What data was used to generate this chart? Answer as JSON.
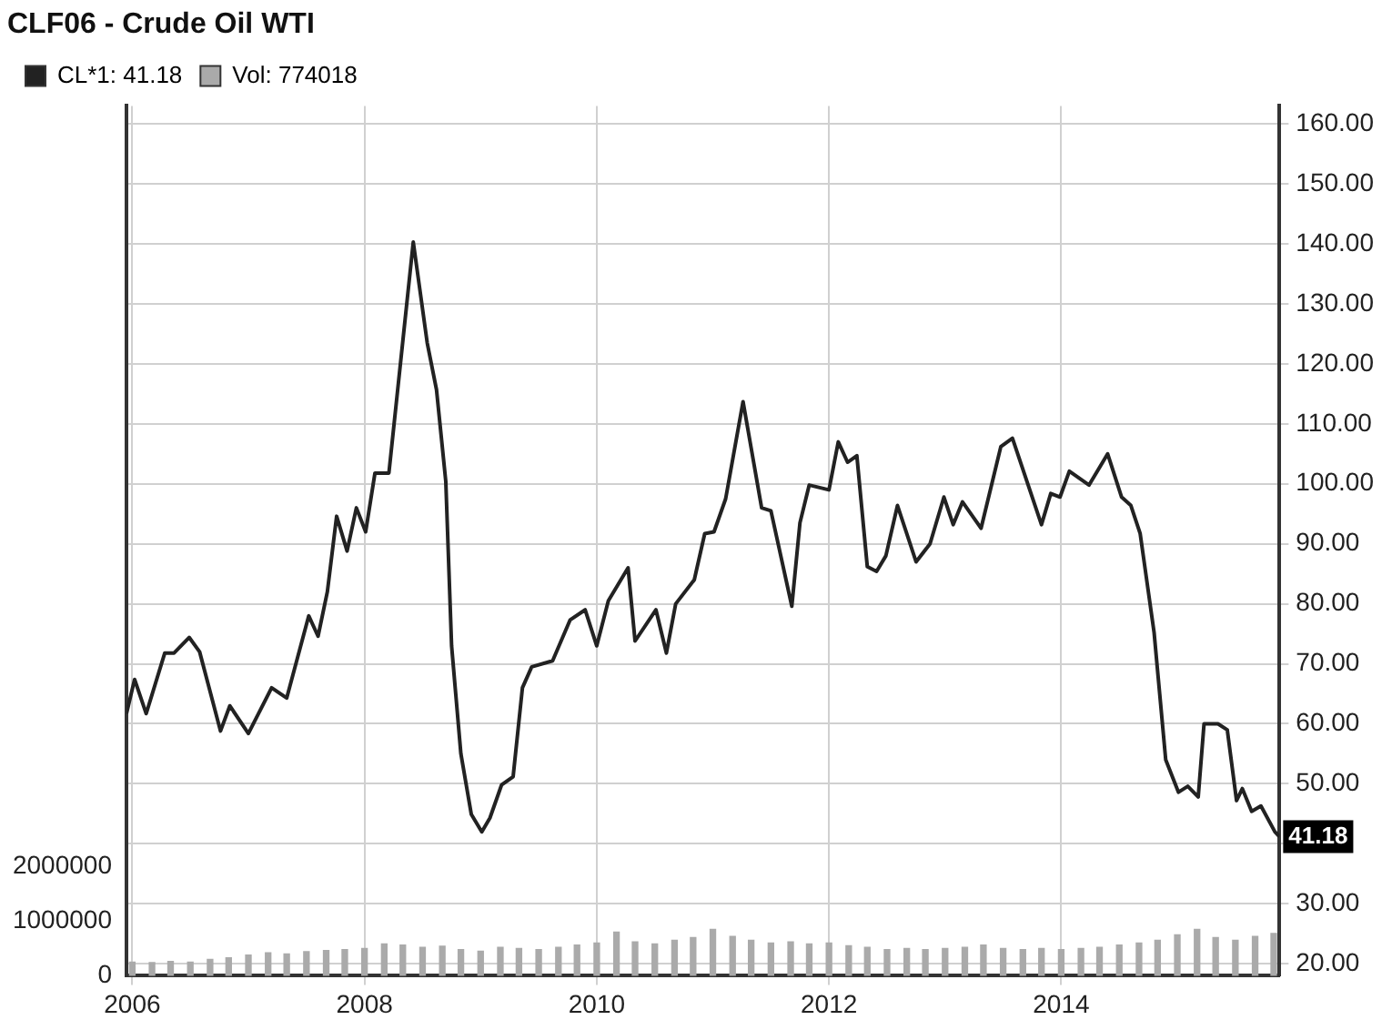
{
  "chart_data": {
    "type": "line",
    "title": "CLF06 - Crude Oil WTI",
    "legend": "top left",
    "grid": true,
    "marker": "none",
    "line_style": "solid",
    "xlim": [
      2005.95,
      2015.88
    ],
    "xticks": [
      2006,
      2008,
      2010,
      2012,
      2014
    ],
    "ylim": [
      18,
      163
    ],
    "yticks": [
      {
        "value": 20,
        "label": "20.00"
      },
      {
        "value": 30,
        "label": "30.00"
      },
      {
        "value": 40,
        "label": null
      },
      {
        "value": 50,
        "label": "50.00"
      },
      {
        "value": 60,
        "label": "60.00"
      },
      {
        "value": 70,
        "label": "70.00"
      },
      {
        "value": 80,
        "label": "80.00"
      },
      {
        "value": 90,
        "label": "90.00"
      },
      {
        "value": 100,
        "label": "100.00"
      },
      {
        "value": 110,
        "label": "110.00"
      },
      {
        "value": 120,
        "label": "120.00"
      },
      {
        "value": 130,
        "label": "130.00"
      },
      {
        "value": 140,
        "label": "140.00"
      },
      {
        "value": 150,
        "label": "150.00"
      },
      {
        "value": 160,
        "label": "160.00"
      }
    ],
    "y2lim": [
      0,
      15900000
    ],
    "y2ticks": [
      0,
      1000000,
      2000000
    ],
    "annotations": [
      {
        "text": "41.18",
        "x": 2015.88,
        "y": 41.18
      }
    ],
    "series": [
      {
        "name": "CL*1: 41.18",
        "color": "#222222",
        "x": [
          2005.95,
          2006.02,
          2006.12,
          2006.28,
          2006.36,
          2006.49,
          2006.58,
          2006.76,
          2006.84,
          2007.0,
          2007.2,
          2007.33,
          2007.52,
          2007.6,
          2007.68,
          2007.76,
          2007.85,
          2007.93,
          2008.01,
          2008.09,
          2008.21,
          2008.42,
          2008.54,
          2008.62,
          2008.7,
          2008.75,
          2008.83,
          2008.92,
          2009.01,
          2009.08,
          2009.18,
          2009.28,
          2009.36,
          2009.44,
          2009.62,
          2009.77,
          2009.9,
          2010.0,
          2010.1,
          2010.27,
          2010.33,
          2010.51,
          2010.6,
          2010.68,
          2010.84,
          2010.93,
          2011.01,
          2011.11,
          2011.26,
          2011.42,
          2011.5,
          2011.68,
          2011.75,
          2011.83,
          2012.0,
          2012.08,
          2012.16,
          2012.24,
          2012.33,
          2012.41,
          2012.49,
          2012.59,
          2012.75,
          2012.87,
          2012.99,
          2013.07,
          2013.15,
          2013.31,
          2013.48,
          2013.58,
          2013.83,
          2013.91,
          2013.99,
          2014.07,
          2014.24,
          2014.4,
          2014.52,
          2014.6,
          2014.68,
          2014.8,
          2014.9,
          2015.01,
          2015.09,
          2015.18,
          2015.23,
          2015.35,
          2015.43,
          2015.51,
          2015.56,
          2015.64,
          2015.72,
          2015.84,
          2015.88
        ],
        "values": [
          61.7,
          67.4,
          61.7,
          71.8,
          71.8,
          74.4,
          72,
          58.8,
          63,
          58.4,
          66,
          64.3,
          78,
          74.6,
          82,
          94.6,
          88.8,
          96,
          92,
          101.8,
          101.8,
          140.3,
          123.5,
          115.7,
          100.4,
          73,
          55,
          44.9,
          42,
          44.3,
          49.8,
          51.2,
          66,
          69.5,
          70.5,
          77.3,
          79,
          73,
          80.5,
          86,
          73.8,
          79,
          71.8,
          80,
          84,
          91.7,
          92,
          97.5,
          113.7,
          96,
          95.5,
          79.6,
          93.5,
          99.8,
          99,
          107,
          103.6,
          104.7,
          86.2,
          85.4,
          88,
          96.4,
          87,
          90,
          97.8,
          93.2,
          97,
          92.6,
          106.2,
          107.6,
          93.2,
          98.4,
          97.8,
          102.1,
          99.8,
          105,
          97.8,
          96.4,
          91.7,
          75.2,
          54,
          48.6,
          49.6,
          47.8,
          60,
          60,
          59,
          47.2,
          49.2,
          45.4,
          46.3,
          42,
          41.18
        ]
      },
      {
        "name": "Vol: 774018",
        "type": "bar",
        "axis": "y2",
        "color": "#aaaaaa",
        "x": [
          2006.0,
          2006.17,
          2006.33,
          2006.5,
          2006.67,
          2006.83,
          2007.0,
          2007.17,
          2007.33,
          2007.5,
          2007.67,
          2007.83,
          2008.0,
          2008.17,
          2008.33,
          2008.5,
          2008.67,
          2008.83,
          2009.0,
          2009.17,
          2009.33,
          2009.5,
          2009.67,
          2009.83,
          2010.0,
          2010.17,
          2010.33,
          2010.5,
          2010.67,
          2010.83,
          2011.0,
          2011.17,
          2011.33,
          2011.5,
          2011.67,
          2011.83,
          2012.0,
          2012.17,
          2012.33,
          2012.5,
          2012.67,
          2012.83,
          2013.0,
          2013.17,
          2013.33,
          2013.5,
          2013.67,
          2013.83,
          2014.0,
          2014.17,
          2014.33,
          2014.5,
          2014.67,
          2014.83,
          2015.0,
          2015.17,
          2015.33,
          2015.5,
          2015.67,
          2015.83
        ],
        "values": [
          250000,
          240000,
          260000,
          250000,
          300000,
          330000,
          380000,
          420000,
          400000,
          440000,
          460000,
          480000,
          500000,
          580000,
          560000,
          520000,
          540000,
          480000,
          450000,
          520000,
          500000,
          480000,
          520000,
          560000,
          600000,
          800000,
          620000,
          580000,
          650000,
          700000,
          850000,
          720000,
          650000,
          600000,
          620000,
          580000,
          600000,
          550000,
          520000,
          480000,
          500000,
          480000,
          500000,
          520000,
          560000,
          500000,
          480000,
          500000,
          480000,
          500000,
          520000,
          560000,
          600000,
          650000,
          750000,
          850000,
          700000,
          650000,
          720000,
          774018
        ]
      }
    ]
  }
}
